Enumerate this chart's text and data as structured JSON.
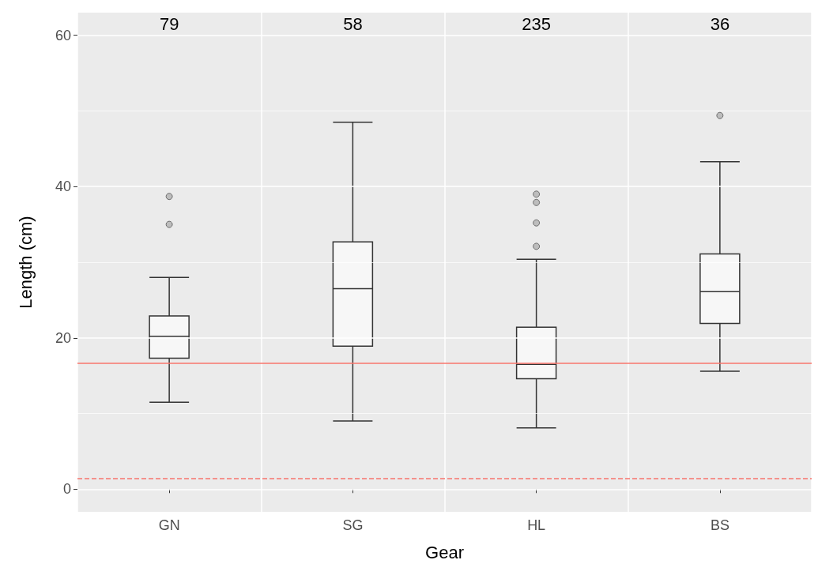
{
  "chart_data": {
    "type": "box",
    "xlabel": "Gear",
    "ylabel": "Length (cm)",
    "categories": [
      "GN",
      "SG",
      "HL",
      "BS"
    ],
    "boxes": [
      {
        "low": 11.5,
        "q1": 17.3,
        "median": 20.2,
        "q3": 22.9,
        "high": 28.0,
        "outliers": [
          35.0,
          38.7
        ]
      },
      {
        "low": 9.0,
        "q1": 18.9,
        "median": 26.5,
        "q3": 32.7,
        "high": 48.5
      },
      {
        "low": 8.1,
        "q1": 14.6,
        "median": 16.5,
        "q3": 21.4,
        "high": 30.4,
        "outliers": [
          32.1,
          35.2,
          37.9,
          39.0
        ]
      },
      {
        "low": 15.6,
        "q1": 21.9,
        "median": 26.1,
        "q3": 31.1,
        "high": 43.3,
        "outliers": [
          49.4
        ]
      }
    ],
    "ylim": [
      -3,
      63
    ],
    "yticks": [
      0,
      20,
      40,
      60
    ],
    "grid": true,
    "ref_lines": [
      {
        "axis": "y",
        "value": 16.7,
        "color": "#f8766d",
        "line_style": "solid"
      },
      {
        "axis": "y",
        "value": 1.4,
        "color": "#f8766d",
        "line_style": "dashed"
      }
    ],
    "annotations": [
      "79",
      "58",
      "235",
      "36"
    ]
  }
}
